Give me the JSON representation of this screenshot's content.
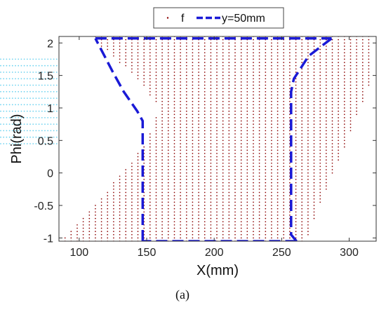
{
  "chart_data": {
    "type": "scatter",
    "xlabel": "X(mm)",
    "ylabel": "Phi(rad)",
    "xlim": [
      85,
      320
    ],
    "ylim": [
      -1.05,
      2.1
    ],
    "xticks": [
      100,
      150,
      200,
      250,
      300
    ],
    "yticks": [
      -1,
      -0.5,
      0,
      0.5,
      1,
      1.5,
      2
    ],
    "ytick_labels": [
      "-1",
      "-0.5",
      "0",
      "0.5",
      "1",
      "1.5",
      "2"
    ],
    "grid": false,
    "legend_position": "top-center",
    "caption": "(a)",
    "colors": {
      "f": "#8b0000",
      "y50": "#1a1ad6",
      "faint": "#6fd3f0"
    },
    "series": [
      {
        "name": "f",
        "style": "dots",
        "grid_step_x": 4.5,
        "grid_step_y": 0.05,
        "region_left_edge": {
          "y": [
            -1.05,
            0.0,
            0.5,
            1.0,
            1.5,
            2.1
          ],
          "x": [
            86,
            132,
            150,
            160,
            141,
            108
          ]
        },
        "region_right_edge": {
          "y": [
            -1.05,
            0.0,
            0.5,
            1.0,
            1.5,
            2.1
          ],
          "x": [
            268,
            288,
            299,
            308,
            318,
            318
          ]
        }
      },
      {
        "name": "y=50mm",
        "style": "dashed",
        "segments": [
          {
            "x": [
              147,
              147,
              143,
              133,
              125,
              112
            ],
            "y": [
              -1.05,
              0.8,
              0.95,
              1.25,
              1.55,
              2.07
            ]
          },
          {
            "x": [
              112,
              287
            ],
            "y": [
              2.07,
              2.07
            ]
          },
          {
            "x": [
              287,
              270,
              259,
              257,
              257,
              261
            ],
            "y": [
              2.07,
              1.8,
              1.45,
              1.25,
              -0.95,
              -1.05
            ]
          },
          {
            "x": [
              261,
              147
            ],
            "y": [
              -1.05,
              -1.05
            ]
          }
        ]
      }
    ],
    "faint_dots": {
      "note_color": "faint",
      "x_start": 85,
      "rows": [
        {
          "y": 1.75,
          "x_end": 98
        },
        {
          "y": 1.65,
          "x_end": 103
        },
        {
          "y": 1.55,
          "x_end": 110
        },
        {
          "y": 1.45,
          "x_end": 117
        },
        {
          "y": 1.35,
          "x_end": 123
        },
        {
          "y": 1.25,
          "x_end": 128
        },
        {
          "y": 1.15,
          "x_end": 130
        },
        {
          "y": 1.05,
          "x_end": 130
        },
        {
          "y": 0.95,
          "x_end": 131
        },
        {
          "y": 0.85,
          "x_end": 132
        },
        {
          "y": 0.75,
          "x_end": 133
        },
        {
          "y": 0.65,
          "x_end": 132
        },
        {
          "y": 0.55,
          "x_end": 128
        },
        {
          "y": 0.45,
          "x_end": 122
        }
      ]
    }
  }
}
